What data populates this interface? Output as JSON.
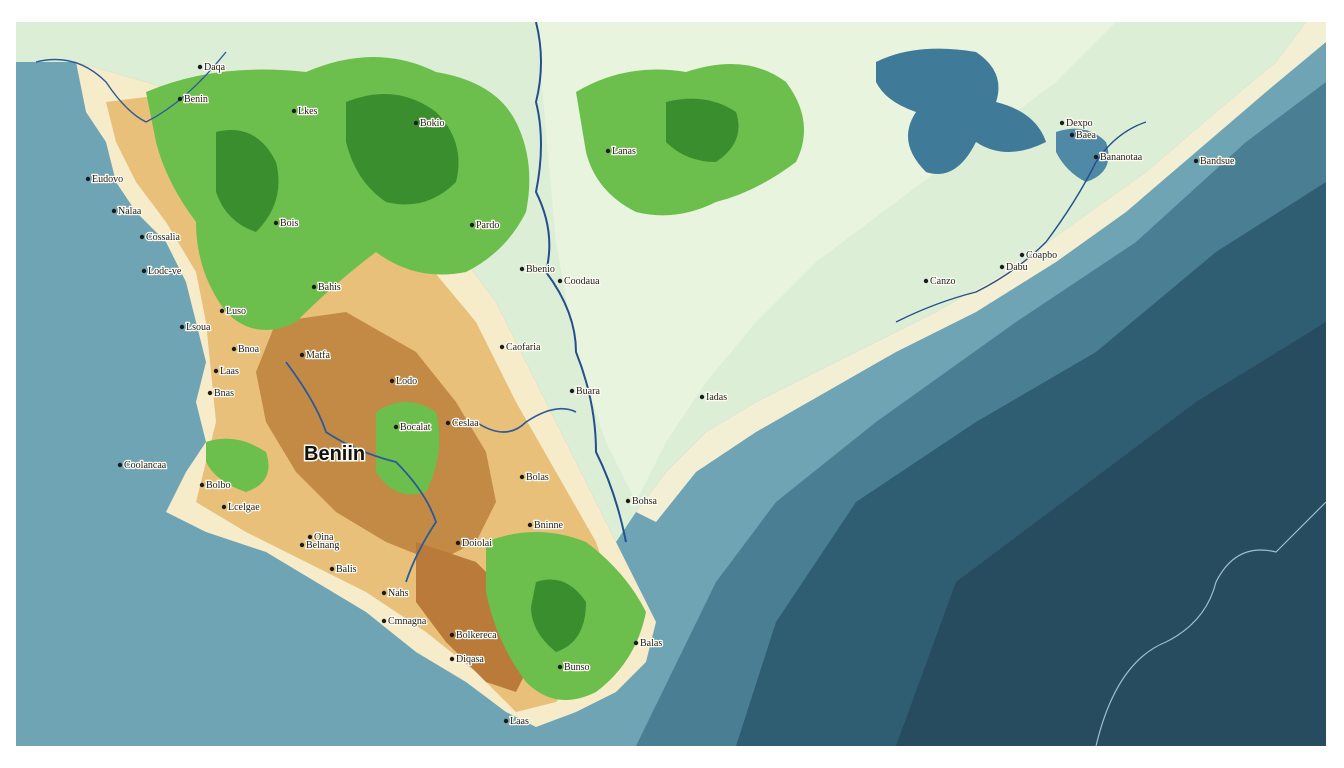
{
  "map": {
    "title": "Beniin",
    "colors": {
      "ocean_light": "#6a9fb0",
      "ocean_mid": "#3f7488",
      "ocean_deep": "#244a5e",
      "coast_cream": "#f8f2dc",
      "land_pale_green": "#dcefd8",
      "land_green": "#6cbf4c",
      "land_dark_green": "#3a8e2e",
      "land_tan": "#e8c07a",
      "land_brown": "#b97a3a",
      "lake_blue": "#3f7a99",
      "river_blue": "#254f8c"
    },
    "places": [
      {
        "name": "Daqa"
      },
      {
        "name": "Benin"
      },
      {
        "name": "Lkes"
      },
      {
        "name": "Bokio"
      },
      {
        "name": "Eudovo"
      },
      {
        "name": "Nalaa"
      },
      {
        "name": "Cossalia"
      },
      {
        "name": "Lodc-ve"
      },
      {
        "name": "Luso"
      },
      {
        "name": "Lsoua"
      },
      {
        "name": "Bnoa"
      },
      {
        "name": "Laas"
      },
      {
        "name": "Bnas"
      },
      {
        "name": "Bois"
      },
      {
        "name": "Bahis"
      },
      {
        "name": "Pardo"
      },
      {
        "name": "Bbenio"
      },
      {
        "name": "Coodaua"
      },
      {
        "name": "Caofaria"
      },
      {
        "name": "Buara"
      },
      {
        "name": "Lodo"
      },
      {
        "name": "Matfa"
      },
      {
        "name": "Bocalat"
      },
      {
        "name": "Ceslaa"
      },
      {
        "name": "Coolancaa"
      },
      {
        "name": "Bolbo"
      },
      {
        "name": "Lcelgae"
      },
      {
        "name": "Bolas"
      },
      {
        "name": "Bninne"
      },
      {
        "name": "Doiolai"
      },
      {
        "name": "Qina"
      },
      {
        "name": "Belnang"
      },
      {
        "name": "Balis"
      },
      {
        "name": "Nahs"
      },
      {
        "name": "Cmnagna"
      },
      {
        "name": "Bolkereca"
      },
      {
        "name": "Diqasa"
      },
      {
        "name": "Bunso"
      },
      {
        "name": "Laas"
      },
      {
        "name": "Bohsa"
      },
      {
        "name": "Balas"
      },
      {
        "name": "Iadas"
      },
      {
        "name": "Lanas"
      },
      {
        "name": "Canzo"
      },
      {
        "name": "Coapbo"
      },
      {
        "name": "Dabu"
      },
      {
        "name": "Dexpo"
      },
      {
        "name": "Baea"
      },
      {
        "name": "Bananotaa"
      },
      {
        "name": "Bandsue"
      }
    ]
  }
}
